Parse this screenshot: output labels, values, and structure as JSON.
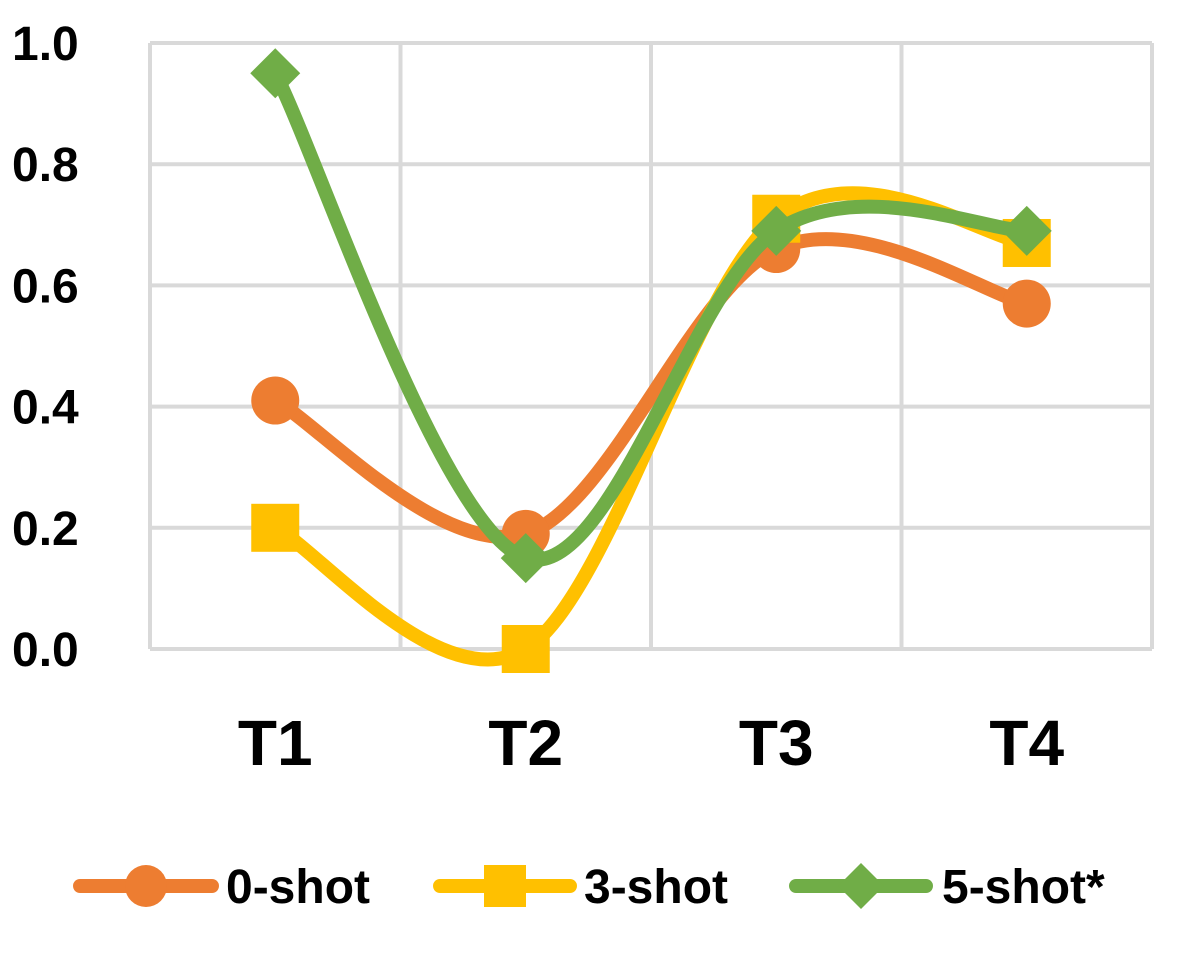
{
  "chart_data": {
    "type": "line",
    "categories": [
      "T1",
      "T2",
      "T3",
      "T4"
    ],
    "series": [
      {
        "name": "0-shot",
        "values": [
          0.41,
          0.19,
          0.66,
          0.57
        ],
        "color": "#ED7D31",
        "marker": "circle"
      },
      {
        "name": "3-shot",
        "values": [
          0.2,
          0.0,
          0.71,
          0.67
        ],
        "color": "#FFC000",
        "marker": "square"
      },
      {
        "name": "5-shot*",
        "values": [
          0.95,
          0.15,
          0.69,
          0.69
        ],
        "color": "#70AD47",
        "marker": "diamond"
      }
    ],
    "yticks": [
      "0.0",
      "0.2",
      "0.4",
      "0.6",
      "0.8",
      "1.0"
    ],
    "ylim": [
      0,
      1.0
    ],
    "grid": true,
    "smooth": true,
    "legend": "bottom",
    "title": "",
    "xlabel": "",
    "ylabel": ""
  }
}
